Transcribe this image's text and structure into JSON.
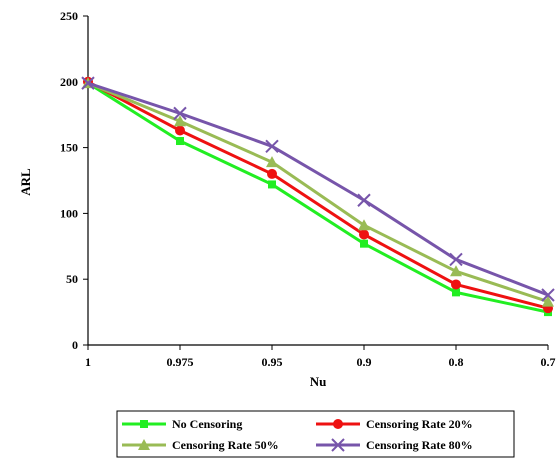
{
  "chart_data": {
    "type": "line",
    "title": "",
    "xlabel": "Nu",
    "ylabel": "ARL",
    "categories": [
      "1",
      "0.975",
      "0.95",
      "0.9",
      "0.8",
      "0.7"
    ],
    "ylim": [
      0,
      250
    ],
    "yticks": [
      0,
      50,
      100,
      150,
      200,
      250
    ],
    "grid": false,
    "legend_position": "bottom",
    "series": [
      {
        "name": "No Censoring",
        "color": "#22ee22",
        "marker": "square",
        "values": [
          199,
          155,
          122,
          77,
          40,
          25
        ]
      },
      {
        "name": "Censoring Rate 20%",
        "color": "#ee1111",
        "marker": "circle",
        "values": [
          200,
          163,
          130,
          84,
          46,
          28
        ]
      },
      {
        "name": "Censoring Rate 50%",
        "color": "#99bb55",
        "marker": "triangle",
        "values": [
          199,
          170,
          139,
          91,
          56,
          33
        ]
      },
      {
        "name": "Censoring Rate 80%",
        "color": "#7755aa",
        "marker": "x",
        "values": [
          199,
          176,
          151,
          110,
          65,
          38
        ]
      }
    ]
  }
}
